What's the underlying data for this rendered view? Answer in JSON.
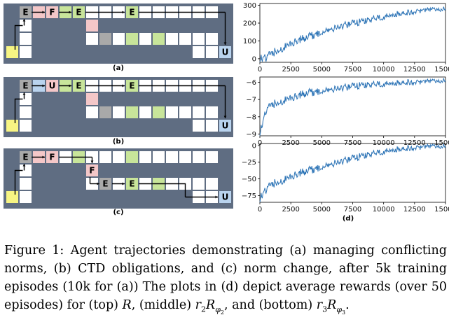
{
  "panels": [
    {
      "label": "(a)",
      "letters": [
        "E",
        "F",
        "E",
        "E",
        "U"
      ]
    },
    {
      "label": "(b)",
      "letters": [
        "E",
        "U",
        "E",
        "E",
        "U"
      ]
    },
    {
      "label": "(c)",
      "letters": [
        "E",
        "F",
        "F",
        "E",
        "E",
        "U"
      ]
    }
  ],
  "plots_label": "(d)",
  "colors": {
    "wall": "#5f6d82",
    "grid_line": "#ffffff",
    "border": "#5f6d82",
    "start": "#f7f583",
    "F": "#f4c7c8",
    "E": "#c8e59a",
    "gray": "#a9a9a9",
    "U": "#b9d3ee",
    "line": "#2a72b5"
  },
  "chart_data": [
    {
      "type": "line",
      "x_ticks": [
        "0",
        "2500",
        "5000",
        "7500",
        "10000",
        "12500",
        "15000"
      ],
      "y_ticks": [
        "0",
        "100",
        "200",
        "300"
      ],
      "xlim": [
        0,
        15000
      ],
      "ylim": [
        -20,
        310
      ],
      "series": [
        {
          "values": [
            [
              0,
              5
            ],
            [
              500,
              10
            ],
            [
              1000,
              30
            ],
            [
              1500,
              50
            ],
            [
              2000,
              70
            ],
            [
              2500,
              85
            ],
            [
              3000,
              100
            ],
            [
              4000,
              125
            ],
            [
              5000,
              150
            ],
            [
              6000,
              170
            ],
            [
              7000,
              190
            ],
            [
              8000,
              205
            ],
            [
              9000,
              220
            ],
            [
              10000,
              235
            ],
            [
              11000,
              250
            ],
            [
              12000,
              260
            ],
            [
              13000,
              270
            ],
            [
              14000,
              275
            ],
            [
              15000,
              280
            ]
          ]
        }
      ]
    },
    {
      "type": "line",
      "x_ticks": [
        "0",
        "2500",
        "5000",
        "7500",
        "10000",
        "12500",
        "15000"
      ],
      "y_ticks": [
        "−6",
        "−7",
        "−8",
        "−9"
      ],
      "y_tick_values": [
        -6,
        -7,
        -8,
        -9
      ],
      "xlim": [
        0,
        15000
      ],
      "ylim": [
        -9.1,
        -5.7
      ],
      "series": [
        {
          "values": [
            [
              0,
              -8.9
            ],
            [
              500,
              -7.6
            ],
            [
              1000,
              -7.3
            ],
            [
              2000,
              -7.0
            ],
            [
              3000,
              -6.8
            ],
            [
              4000,
              -6.6
            ],
            [
              5000,
              -6.5
            ],
            [
              6000,
              -6.4
            ],
            [
              7000,
              -6.3
            ],
            [
              8000,
              -6.2
            ],
            [
              9000,
              -6.15
            ],
            [
              10000,
              -6.1
            ],
            [
              11000,
              -6.05
            ],
            [
              12000,
              -6.0
            ],
            [
              13000,
              -5.98
            ],
            [
              14000,
              -5.95
            ],
            [
              15000,
              -5.9
            ]
          ]
        }
      ]
    },
    {
      "type": "line",
      "x_ticks": [
        "0",
        "2500",
        "5000",
        "7500",
        "10000",
        "12500",
        "15000"
      ],
      "y_ticks": [
        "0",
        "−25",
        "−50",
        "−75"
      ],
      "y_tick_values": [
        0,
        -25,
        -50,
        -75
      ],
      "xlim": [
        0,
        15000
      ],
      "ylim": [
        -85,
        3
      ],
      "series": [
        {
          "values": [
            [
              0,
              -78
            ],
            [
              500,
              -65
            ],
            [
              1000,
              -58
            ],
            [
              2000,
              -50
            ],
            [
              3000,
              -43
            ],
            [
              4000,
              -37
            ],
            [
              5000,
              -32
            ],
            [
              6000,
              -27
            ],
            [
              7000,
              -22
            ],
            [
              8000,
              -17
            ],
            [
              9000,
              -13
            ],
            [
              10000,
              -9
            ],
            [
              11000,
              -6
            ],
            [
              12000,
              -4
            ],
            [
              13000,
              -2.5
            ],
            [
              14000,
              -1.5
            ],
            [
              15000,
              -1
            ]
          ]
        }
      ]
    }
  ],
  "caption": {
    "prefix": "Figure 1: Agent trajectories demonstrating (a) managing conflicting norms, (b) CTD obligations, and (c) norm change, after 5k training episodes (10k for (a)) The plots in (d) depict average rewards (over 50 episodes) for (top) ",
    "R": "R",
    "mid1": ", (middle) ",
    "r2": "r",
    "r2sub": "2",
    "R2": "R",
    "phi2": "φ",
    "phi2sub": "2",
    "mid2": ", and (bottom) ",
    "r3": "r",
    "r3sub": "3",
    "R3": "R",
    "phi3": "φ",
    "phi3sub": "3",
    "end": "."
  }
}
